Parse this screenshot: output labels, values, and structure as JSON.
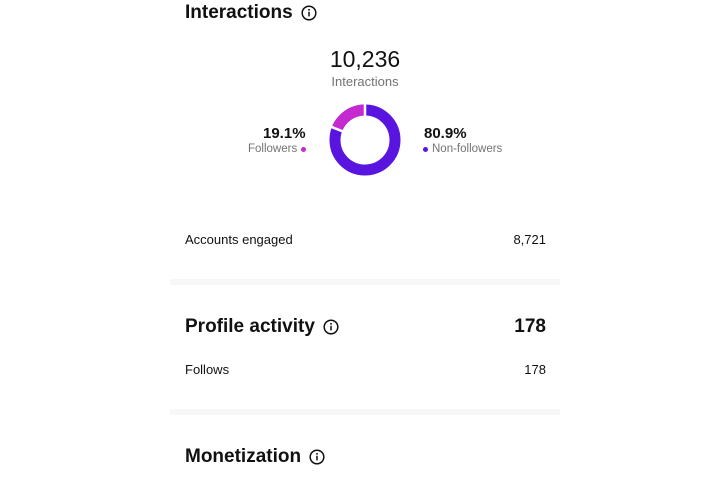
{
  "interactions": {
    "title": "Interactions",
    "total": "10,236",
    "total_label": "Interactions",
    "followers_pct": "19.1%",
    "followers_label": "Followers",
    "non_followers_pct": "80.9%",
    "non_followers_label": "Non-followers",
    "followers_fraction": 0.191,
    "followers_color": "#c52ad1",
    "non_followers_color": "#5a14e0",
    "accounts_engaged_label": "Accounts engaged",
    "accounts_engaged_value": "8,721"
  },
  "profile_activity": {
    "title": "Profile activity",
    "value": "178",
    "follows_label": "Follows",
    "follows_value": "178"
  },
  "monetization": {
    "title": "Monetization"
  },
  "icons": {
    "info": "info-icon"
  }
}
